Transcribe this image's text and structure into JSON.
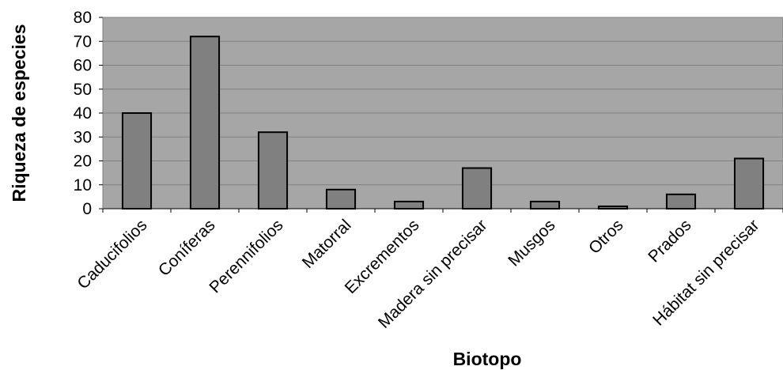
{
  "chart_data": {
    "type": "bar",
    "title": "",
    "xlabel": "Biotopo",
    "ylabel": "Riqueza de especies",
    "categories": [
      "Caducifolios",
      "Coníferas",
      "Perennifolios",
      "Matorral",
      "Excrementos",
      "Madera sin precisar",
      "Musgos",
      "Otros",
      "Prados",
      "Hábitat sin precisar"
    ],
    "values": [
      40,
      72,
      32,
      8,
      3,
      17,
      3,
      1,
      6,
      21
    ],
    "ylim": [
      0,
      80
    ],
    "yticks": [
      "0",
      "10",
      "20",
      "30",
      "40",
      "50",
      "60",
      "70",
      "80"
    ],
    "grid": true,
    "plot_background": "#a6a6a6",
    "bar_color": "#808080",
    "bar_edge_color": "#000000"
  }
}
